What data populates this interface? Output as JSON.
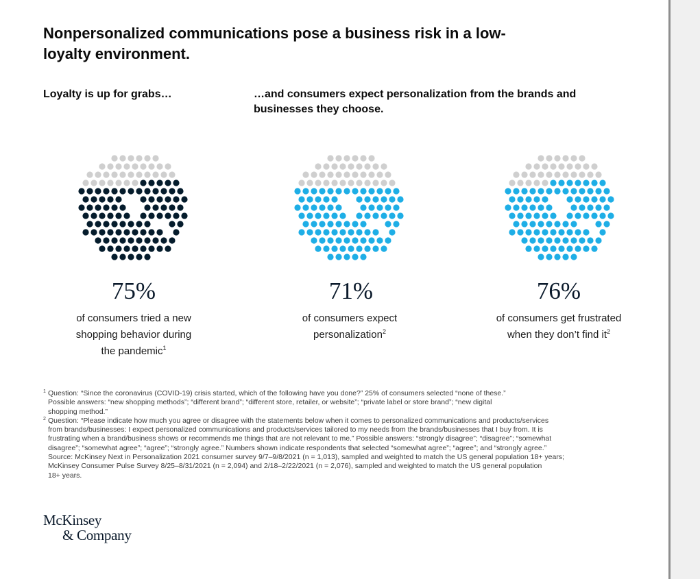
{
  "title": "Nonpersonalized communications pose a business risk in a low-loyalty environment.",
  "subtitle_left": "Loyalty is up for grabs…",
  "subtitle_right": "…and consumers expect personalization from the brands and businesses they choose.",
  "colors": {
    "gray": "#cfcfcf",
    "navy": "#051c2c",
    "blue": "#1eaee6"
  },
  "chart_data": [
    {
      "type": "pie",
      "value_percent": 75,
      "label": "75%",
      "color": "#051c2c",
      "desc_lines": [
        "of consumers tried a new",
        "shopping behavior during"
      ],
      "desc_last": "the pandemic",
      "footnote": "1"
    },
    {
      "type": "pie",
      "value_percent": 71,
      "label": "71%",
      "color": "#1eaee6",
      "desc_lines": [
        "of consumers expect"
      ],
      "desc_last": "personalization",
      "footnote": "2"
    },
    {
      "type": "pie",
      "value_percent": 76,
      "label": "76%",
      "color": "#1eaee6",
      "desc_lines": [
        "of consumers get frustrated"
      ],
      "desc_last": "when they don’t find it",
      "footnote": "2"
    }
  ],
  "footnotes": [
    {
      "num": "1",
      "lines": [
        "Question: “Since the coronavirus (COVID-19) crisis started, which of the following have you done?” 25% of consumers selected “none of these.”",
        "Possible answers: “new shopping methods”; “different brand”; “different store, retailer, or website”; “private label or store brand”; “new digital",
        "shopping method.”"
      ]
    },
    {
      "num": "2",
      "lines": [
        "Question: “Please indicate how much you agree or disagree with the statements below when it comes to personalized communications and products/services",
        "from brands/businesses: I expect personalized communications and products/services tailored to my needs from the brands/businesses that I buy from. It is",
        "frustrating when a brand/business shows or recommends me things that are not relevant to me.” Possible answers: “strongly disagree”; “disagree”; “somewhat",
        "disagree”; “somewhat agree”; “agree”; “strongly agree.” Numbers shown indicate respondents that selected “somewhat agree”; “agree”; and “strongly agree.”"
      ]
    }
  ],
  "source_lines": [
    "Source: McKinsey Next in Personalization 2021 consumer survey 9/7–9/8/2021 (n = 1,013), sampled and weighted to match the US general population 18+ years;",
    "McKinsey Consumer Pulse Survey 8/25–8/31/2021 (n = 2,094) and 2/18–2/22/2021 (n = 2,076), sampled and weighted to match the US general population",
    "18+ years."
  ],
  "logo": {
    "line1": "McKinsey",
    "line2": "& Company"
  }
}
